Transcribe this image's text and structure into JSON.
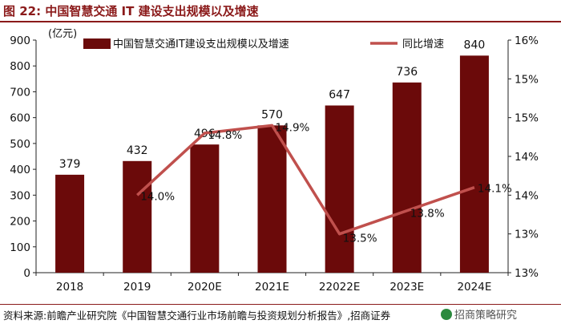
{
  "header": {
    "title": "图 22:  中国智慧交通 IT 建设支出规模以及增速"
  },
  "chart_data": {
    "type": "bar+line",
    "y_unit_label": "(亿元)",
    "categories": [
      "2018",
      "2019",
      "2020E",
      "2021E",
      "22022E",
      "2023E",
      "2024E"
    ],
    "series": [
      {
        "name": "中国智慧交通IT建设支出规模以及增速",
        "kind": "bar",
        "axis": "left",
        "values": [
          379,
          432,
          496,
          570,
          647,
          736,
          840
        ],
        "labels": [
          "379",
          "432",
          "496",
          "570",
          "647",
          "736",
          "840"
        ]
      },
      {
        "name": "同比增速",
        "kind": "line",
        "axis": "right",
        "values": [
          null,
          14.0,
          14.8,
          14.9,
          13.5,
          13.8,
          14.1
        ],
        "labels": [
          "",
          "14.0%",
          "14.8%",
          "14.9%",
          "13.5%",
          "13.8%",
          "14.1%"
        ]
      }
    ],
    "left_axis": {
      "min": 0,
      "max": 900,
      "ticks": [
        "0",
        "100",
        "200",
        "300",
        "400",
        "500",
        "600",
        "700",
        "800",
        "900"
      ]
    },
    "right_axis": {
      "min": 13.0,
      "max": 16.0,
      "ticks": [
        "13%",
        "13%",
        "14%",
        "14%",
        "15%",
        "15%",
        "16%"
      ]
    },
    "colors": {
      "bar": "#6b0a0a",
      "line": "#c0504d",
      "title": "#8b1a1a"
    }
  },
  "footer": {
    "source": "资料来源:前瞻产业研究院《中国智慧交通行业市场前瞻与投资规划分析报告》,招商证券",
    "watermark": "招商策略研究"
  }
}
